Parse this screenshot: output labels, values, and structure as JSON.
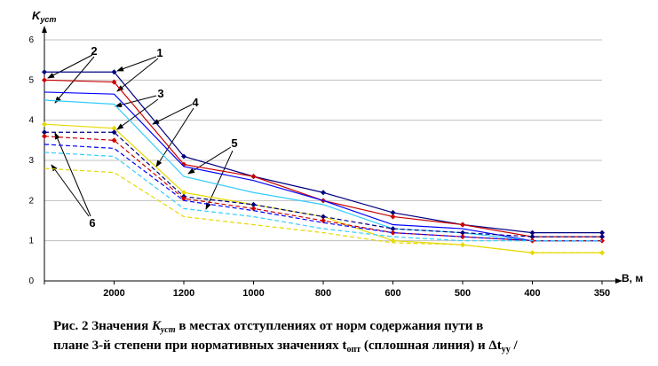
{
  "chart_data": {
    "type": "line",
    "y_label": [
      "K",
      "уст"
    ],
    "x_label": "B, м",
    "categories": [
      null,
      "2000",
      "1200",
      "1000",
      "800",
      "600",
      "500",
      "400",
      "350"
    ],
    "ylim": [
      0,
      6
    ],
    "yticks": [
      0,
      1,
      2,
      3,
      4,
      5,
      6
    ],
    "grid": true,
    "series": [
      {
        "color": "#000080",
        "style": "solid",
        "markers": true,
        "values": [
          5.2,
          5.2,
          3.1,
          2.6,
          2.2,
          1.7,
          1.4,
          1.2,
          1.2
        ]
      },
      {
        "color": "#cc0000",
        "style": "solid",
        "markers": true,
        "values": [
          5.0,
          4.95,
          2.9,
          2.6,
          2.0,
          1.6,
          1.4,
          1.1,
          1.1
        ]
      },
      {
        "color": "#0000ff",
        "style": "solid",
        "markers": false,
        "values": [
          4.7,
          4.65,
          2.85,
          2.5,
          2.0,
          1.4,
          1.3,
          1.0,
          1.0
        ]
      },
      {
        "color": "#33ccff",
        "style": "solid",
        "markers": false,
        "values": [
          4.5,
          4.4,
          2.6,
          2.2,
          1.9,
          1.3,
          1.2,
          1.0,
          1.0
        ]
      },
      {
        "color": "#e6d800",
        "style": "solid",
        "markers": true,
        "values": [
          3.9,
          3.8,
          2.2,
          1.9,
          1.6,
          1.0,
          0.9,
          0.7,
          0.7
        ]
      },
      {
        "color": "#000080",
        "style": "dashed",
        "markers": true,
        "values": [
          3.7,
          3.7,
          2.1,
          1.9,
          1.6,
          1.3,
          1.2,
          1.1,
          1.1
        ]
      },
      {
        "color": "#cc0000",
        "style": "dashed",
        "markers": true,
        "values": [
          3.6,
          3.5,
          2.05,
          1.8,
          1.5,
          1.2,
          1.1,
          1.0,
          1.0
        ]
      },
      {
        "color": "#0000ff",
        "style": "dashed",
        "markers": false,
        "values": [
          3.4,
          3.3,
          2.0,
          1.75,
          1.45,
          1.2,
          1.1,
          1.0,
          1.0
        ]
      },
      {
        "color": "#33ccff",
        "style": "dashed",
        "markers": false,
        "values": [
          3.2,
          3.1,
          1.8,
          1.6,
          1.3,
          1.1,
          1.0,
          1.0,
          1.0
        ]
      },
      {
        "color": "#e6d800",
        "style": "dashed",
        "markers": false,
        "values": [
          2.8,
          2.7,
          1.6,
          1.4,
          1.2,
          0.95,
          0.9,
          0.7,
          0.7
        ]
      }
    ],
    "annotations": [
      "1",
      "2",
      "3",
      "4",
      "5",
      "6"
    ],
    "caption": [
      "Рис. 2 Значения ",
      "K",
      "уст",
      " в местах отступлениях от норм содержания пути в",
      "плане 3-й степени при нормативных значениях t",
      "опт",
      " (сплошная линия) и Δt",
      "уу",
      " /"
    ]
  }
}
